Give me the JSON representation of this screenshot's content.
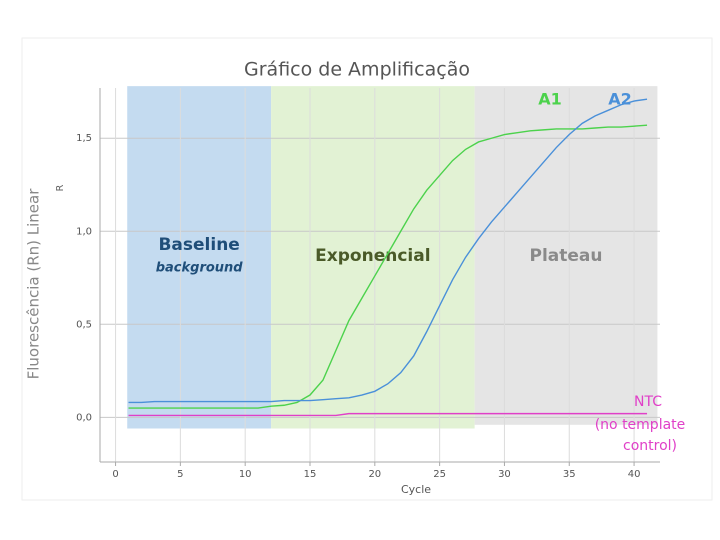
{
  "chart_data": {
    "type": "line",
    "title": "Gráfico de Amplificação",
    "x_label": "Cycle",
    "y_label": "Fluorescência (Rn) Linear",
    "y_inner_label": "R",
    "x": [
      1,
      2,
      3,
      4,
      5,
      6,
      7,
      8,
      9,
      10,
      11,
      12,
      13,
      14,
      15,
      16,
      17,
      18,
      19,
      20,
      21,
      22,
      23,
      24,
      25,
      26,
      27,
      28,
      29,
      30,
      31,
      32,
      33,
      34,
      35,
      36,
      37,
      38,
      39,
      40,
      41
    ],
    "series": [
      {
        "name": "A1",
        "color": "#4cd24c",
        "values": [
          0.05,
          0.05,
          0.05,
          0.05,
          0.05,
          0.05,
          0.05,
          0.05,
          0.05,
          0.05,
          0.05,
          0.06,
          0.065,
          0.08,
          0.12,
          0.2,
          0.36,
          0.52,
          0.64,
          0.76,
          0.88,
          1.0,
          1.12,
          1.22,
          1.3,
          1.38,
          1.44,
          1.48,
          1.5,
          1.52,
          1.53,
          1.54,
          1.545,
          1.55,
          1.55,
          1.55,
          1.555,
          1.56,
          1.56,
          1.565,
          1.57
        ]
      },
      {
        "name": "A2",
        "color": "#4a90d9",
        "values": [
          0.08,
          0.08,
          0.085,
          0.085,
          0.085,
          0.085,
          0.085,
          0.085,
          0.085,
          0.085,
          0.085,
          0.085,
          0.09,
          0.09,
          0.09,
          0.095,
          0.1,
          0.105,
          0.12,
          0.14,
          0.18,
          0.24,
          0.33,
          0.46,
          0.6,
          0.74,
          0.86,
          0.96,
          1.05,
          1.13,
          1.21,
          1.29,
          1.37,
          1.45,
          1.52,
          1.58,
          1.62,
          1.65,
          1.68,
          1.7,
          1.71
        ]
      },
      {
        "name": "NTC",
        "color": "#e040c8",
        "values": [
          0.01,
          0.01,
          0.01,
          0.01,
          0.01,
          0.01,
          0.01,
          0.01,
          0.01,
          0.01,
          0.01,
          0.01,
          0.01,
          0.01,
          0.01,
          0.01,
          0.01,
          0.02,
          0.02,
          0.02,
          0.02,
          0.02,
          0.02,
          0.02,
          0.02,
          0.02,
          0.02,
          0.02,
          0.02,
          0.02,
          0.02,
          0.02,
          0.02,
          0.02,
          0.02,
          0.02,
          0.02,
          0.02,
          0.02,
          0.02,
          0.02
        ]
      }
    ],
    "ntc_note": [
      "(no template",
      "control)"
    ],
    "regions": [
      {
        "label": "Baseline",
        "sublabel": "background",
        "start": 0.9,
        "end": 12,
        "bottom": -0.06,
        "top": 1.78,
        "color": "#c4dbf0",
        "text_color": "#1f4e79"
      },
      {
        "label": "Exponencial",
        "start": 12,
        "end": 27.7,
        "bottom": -0.06,
        "top": 1.78,
        "color": "#e2f2d4",
        "text_color": "#4a5a28"
      },
      {
        "label": "Plateau",
        "start": 27.7,
        "end": 41.8,
        "bottom": -0.04,
        "top": 1.78,
        "color": "#e5e5e5",
        "text_color": "#8a8a8a"
      }
    ],
    "xlim": [
      -1.2,
      42
    ],
    "ylim": [
      -0.24,
      1.77
    ],
    "xticks": [
      0,
      5,
      10,
      15,
      20,
      25,
      30,
      35,
      40
    ],
    "yticks": [
      {
        "value": 0,
        "label": "0,0"
      },
      {
        "value": 0.5,
        "label": "0,5"
      },
      {
        "value": 1,
        "label": "1,0"
      },
      {
        "value": 1.5,
        "label": "1,5"
      }
    ],
    "grid": true
  }
}
